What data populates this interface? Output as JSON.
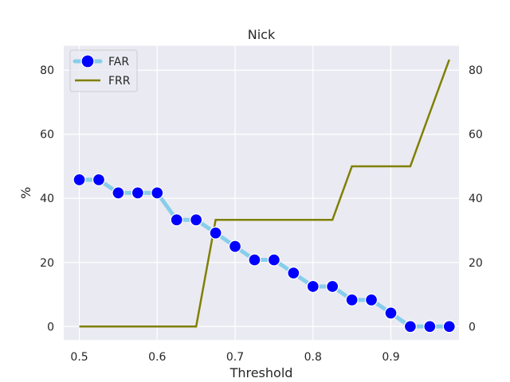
{
  "chart_data": {
    "type": "line",
    "title": "Nick",
    "xlabel": "Threshold",
    "ylabel": "%",
    "xlim": [
      0.48,
      0.9875
    ],
    "ylim": [
      -4.2,
      87.6
    ],
    "xticks": [
      0.5,
      0.6,
      0.7,
      0.8,
      0.9
    ],
    "xtick_labels": [
      "0.5",
      "0.6",
      "0.7",
      "0.8",
      "0.9"
    ],
    "yticks": [
      0,
      20,
      40,
      60,
      80
    ],
    "ytick_labels": [
      "0",
      "20",
      "40",
      "60",
      "80"
    ],
    "right_yticks": [
      0,
      20,
      40,
      60,
      80
    ],
    "right_ytick_labels": [
      "0",
      "20",
      "40",
      "60",
      "80"
    ],
    "grid": true,
    "legend_position": "top-left",
    "x": [
      0.5,
      0.525,
      0.55,
      0.575,
      0.6,
      0.625,
      0.65,
      0.675,
      0.7,
      0.725,
      0.75,
      0.775,
      0.8,
      0.825,
      0.85,
      0.875,
      0.9,
      0.925,
      0.95,
      0.975
    ],
    "series": [
      {
        "name": "FAR",
        "values": [
          45.8,
          45.8,
          41.7,
          41.7,
          41.7,
          33.3,
          33.3,
          29.2,
          25.0,
          20.8,
          20.8,
          16.7,
          12.5,
          12.5,
          8.3,
          8.3,
          4.2,
          0,
          0,
          0
        ],
        "line_color": "#87ceeb",
        "marker_color": "#0000ff",
        "marker": "circle"
      },
      {
        "name": "FRR",
        "values": [
          0,
          0,
          0,
          0,
          0,
          0,
          0,
          33.3,
          33.3,
          33.3,
          33.3,
          33.3,
          33.3,
          33.3,
          50,
          50,
          50,
          50,
          66.7,
          83.3
        ],
        "line_color": "#808000",
        "marker": "none"
      }
    ],
    "plot_bg": "#eaeaf2",
    "grid_color": "#ffffff"
  }
}
